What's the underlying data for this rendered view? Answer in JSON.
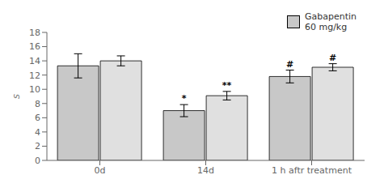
{
  "chart_data": {
    "type": "bar",
    "categories": [
      "0d",
      "14d",
      "1 h aftr treatment"
    ],
    "series": [
      {
        "name": "Gabapentin\n60 mg/kg",
        "color": "#c8c8c8",
        "values": [
          13.3,
          7.0,
          11.8
        ],
        "errors": [
          1.7,
          0.85,
          0.9
        ],
        "annotations": [
          null,
          "*",
          "#"
        ]
      },
      {
        "color": "#e0e0e0",
        "values": [
          14.0,
          9.1,
          13.1
        ],
        "errors": [
          0.7,
          0.6,
          0.5
        ],
        "annotations": [
          null,
          "**",
          "#"
        ]
      }
    ],
    "ylabel": "s",
    "ylim": [
      0,
      18
    ],
    "yticks": [
      0,
      2,
      4,
      6,
      8,
      10,
      12,
      14,
      16,
      18
    ],
    "legend": "upper right"
  }
}
